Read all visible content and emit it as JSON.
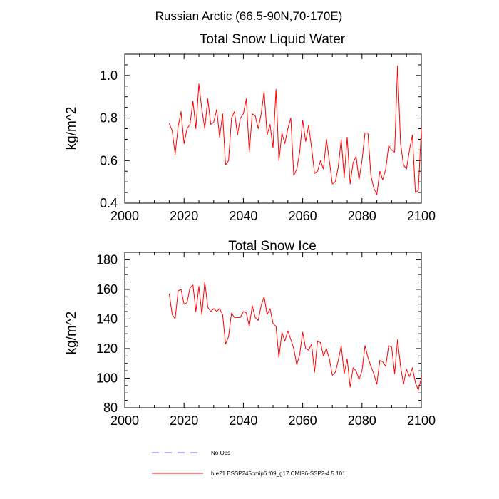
{
  "suptitle": "Russian Arctic (66.5-90N,70-170E)",
  "legend": {
    "no_obs_label": "No Obs",
    "model_label": "b.e21.BSSP245cmip6.f09_g17.CMIP6-SSP2-4.5.101",
    "no_obs_color": "#6a6aff",
    "model_color": "#ff0000"
  },
  "chart_data": [
    {
      "type": "line",
      "title": "Total Snow Liquid Water",
      "xlabel": "",
      "ylabel": "kg/m^2",
      "xlim": [
        2000,
        2100
      ],
      "ylim": [
        0.4,
        1.1
      ],
      "xticks": [
        2000,
        2020,
        2040,
        2060,
        2080,
        2100
      ],
      "xtick_labels": [
        "2000",
        "2020",
        "2040",
        "2060",
        "2080",
        "2100"
      ],
      "yticks": [
        0.4,
        0.6,
        0.8,
        1.0
      ],
      "ytick_labels": [
        "0.4",
        "0.6",
        "0.8",
        "1.0"
      ],
      "series": [
        {
          "name": "b.e21.BSSP245cmip6.f09_g17.CMIP6-SSP2-4.5.101",
          "color": "#ff0000",
          "x": [
            2015,
            2016,
            2017,
            2018,
            2019,
            2020,
            2021,
            2022,
            2023,
            2024,
            2025,
            2026,
            2027,
            2028,
            2029,
            2030,
            2031,
            2032,
            2033,
            2034,
            2035,
            2036,
            2037,
            2038,
            2039,
            2040,
            2041,
            2042,
            2043,
            2044,
            2045,
            2046,
            2047,
            2048,
            2049,
            2050,
            2051,
            2052,
            2053,
            2054,
            2055,
            2056,
            2057,
            2058,
            2059,
            2060,
            2061,
            2062,
            2063,
            2064,
            2065,
            2066,
            2067,
            2068,
            2069,
            2070,
            2071,
            2072,
            2073,
            2074,
            2075,
            2076,
            2077,
            2078,
            2079,
            2080,
            2081,
            2082,
            2083,
            2084,
            2085,
            2086,
            2087,
            2088,
            2089,
            2090,
            2091,
            2092,
            2093,
            2094,
            2095,
            2096,
            2097,
            2098,
            2099,
            2100
          ],
          "values": [
            0.775,
            0.74,
            0.63,
            0.76,
            0.83,
            0.68,
            0.75,
            0.77,
            0.88,
            0.75,
            0.96,
            0.84,
            0.75,
            0.89,
            0.77,
            0.78,
            0.84,
            0.71,
            0.82,
            0.58,
            0.6,
            0.8,
            0.83,
            0.72,
            0.8,
            0.82,
            0.89,
            0.64,
            0.82,
            0.81,
            0.75,
            0.82,
            0.925,
            0.72,
            0.77,
            0.66,
            0.935,
            0.6,
            0.73,
            0.68,
            0.75,
            0.8,
            0.53,
            0.56,
            0.64,
            0.79,
            0.69,
            0.765,
            0.66,
            0.54,
            0.55,
            0.6,
            0.56,
            0.7,
            0.6,
            0.49,
            0.5,
            0.57,
            0.7,
            0.52,
            0.71,
            0.49,
            0.59,
            0.62,
            0.51,
            0.6,
            0.73,
            0.73,
            0.53,
            0.47,
            0.44,
            0.55,
            0.51,
            0.56,
            0.67,
            0.65,
            0.64,
            1.045,
            0.68,
            0.58,
            0.56,
            0.65,
            0.72,
            0.45,
            0.46,
            0.75
          ]
        }
      ]
    },
    {
      "type": "line",
      "title": "Total Snow Ice",
      "xlabel": "",
      "ylabel": "kg/m^2",
      "xlim": [
        2000,
        2100
      ],
      "ylim": [
        80,
        185
      ],
      "xticks": [
        2000,
        2020,
        2040,
        2060,
        2080,
        2100
      ],
      "xtick_labels": [
        "2000",
        "2020",
        "2040",
        "2060",
        "2080",
        "2100"
      ],
      "yticks": [
        80,
        100,
        120,
        140,
        160,
        180
      ],
      "ytick_labels": [
        "80",
        "100",
        "120",
        "140",
        "160",
        "180"
      ],
      "series": [
        {
          "name": "b.e21.BSSP245cmip6.f09_g17.CMIP6-SSP2-4.5.101",
          "color": "#ff0000",
          "x": [
            2015,
            2016,
            2017,
            2018,
            2019,
            2020,
            2021,
            2022,
            2023,
            2024,
            2025,
            2026,
            2027,
            2028,
            2029,
            2030,
            2031,
            2032,
            2033,
            2034,
            2035,
            2036,
            2037,
            2038,
            2039,
            2040,
            2041,
            2042,
            2043,
            2044,
            2045,
            2046,
            2047,
            2048,
            2049,
            2050,
            2051,
            2052,
            2053,
            2054,
            2055,
            2056,
            2057,
            2058,
            2059,
            2060,
            2061,
            2062,
            2063,
            2064,
            2065,
            2066,
            2067,
            2068,
            2069,
            2070,
            2071,
            2072,
            2073,
            2074,
            2075,
            2076,
            2077,
            2078,
            2079,
            2080,
            2081,
            2082,
            2083,
            2084,
            2085,
            2086,
            2087,
            2088,
            2089,
            2090,
            2091,
            2092,
            2093,
            2094,
            2095,
            2096,
            2097,
            2098,
            2099,
            2100
          ],
          "values": [
            157,
            143,
            140,
            159,
            160,
            150,
            151,
            161,
            163,
            145,
            162,
            143,
            165,
            148,
            145,
            147,
            145,
            147,
            143,
            123,
            128,
            144,
            141,
            141,
            141,
            145,
            144,
            135,
            149,
            141,
            139,
            149,
            155,
            143,
            147,
            137,
            135,
            114,
            131,
            125,
            132,
            126,
            120,
            109,
            116,
            131,
            120,
            119,
            123,
            104,
            125,
            124,
            115,
            120,
            113,
            102,
            104,
            112,
            122,
            103,
            113,
            94,
            107,
            105,
            99,
            105,
            122,
            114,
            108,
            103,
            96,
            112,
            111,
            108,
            122,
            121,
            103,
            126,
            108,
            96,
            106,
            101,
            107,
            97,
            92,
            100
          ]
        }
      ]
    }
  ]
}
